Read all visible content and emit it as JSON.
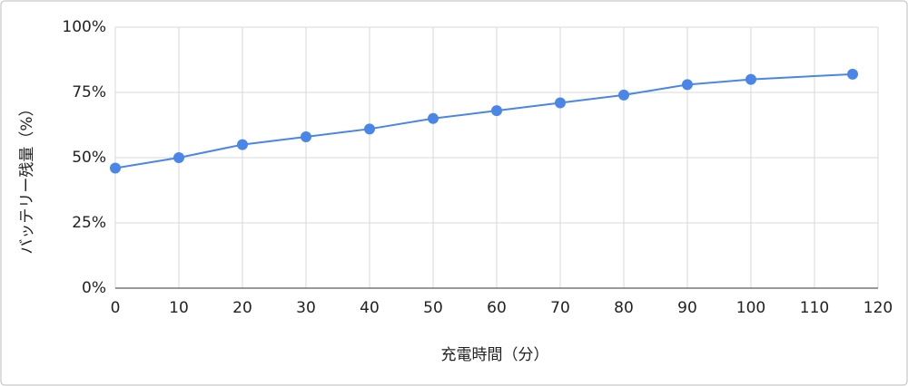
{
  "chart_data": {
    "type": "line",
    "x_label": "充電時間（分）",
    "y_label": "バッテリー残量（%）",
    "series": [
      {
        "name": "バッテリー残量",
        "color": "#4a86e8",
        "x": [
          0,
          10,
          20,
          30,
          40,
          50,
          60,
          70,
          80,
          90,
          100,
          116
        ],
        "values": [
          46,
          50,
          55,
          58,
          61,
          65,
          68,
          71,
          74,
          78,
          80,
          82
        ]
      }
    ],
    "xlim": [
      0,
      120
    ],
    "xticks": [
      0,
      10,
      20,
      30,
      40,
      50,
      60,
      70,
      80,
      90,
      100,
      110,
      120
    ],
    "ylim": [
      0,
      100
    ],
    "yticks": [
      {
        "value": 0,
        "label": "0%"
      },
      {
        "value": 25,
        "label": "25%"
      },
      {
        "value": 50,
        "label": "50%"
      },
      {
        "value": 75,
        "label": "75%"
      },
      {
        "value": 100,
        "label": "100%"
      }
    ],
    "grid": true
  }
}
